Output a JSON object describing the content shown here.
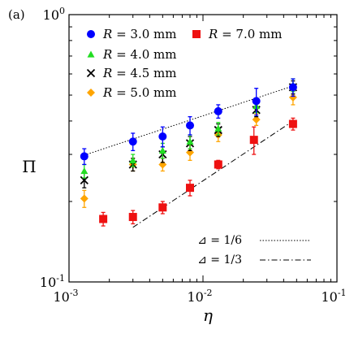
{
  "chart_data": {
    "type": "scatter",
    "panel_label": "(a)",
    "xlabel": "η",
    "ylabel": "Π",
    "xscale": "log",
    "yscale": "log",
    "xlim": [
      0.001,
      0.1
    ],
    "ylim": [
      0.1,
      1
    ],
    "grid": false,
    "legend_position": "top-left",
    "x_ticks": [
      {
        "value": 0.001,
        "base": "10",
        "exp": "-3"
      },
      {
        "value": 0.01,
        "base": "10",
        "exp": "-2"
      },
      {
        "value": 0.1,
        "base": "10",
        "exp": "-1"
      }
    ],
    "y_ticks": [
      {
        "value": 0.1,
        "base": "10",
        "exp": "-1"
      },
      {
        "value": 1,
        "base": "10",
        "exp": "0"
      }
    ],
    "series": [
      {
        "name": "R = 3.0 mm",
        "r_value": "3.0",
        "marker": "circle",
        "color": "#0000ff",
        "x": [
          0.0013,
          0.003,
          0.005,
          0.008,
          0.013,
          0.025,
          0.047
        ],
        "y": [
          0.295,
          0.335,
          0.35,
          0.385,
          0.435,
          0.475,
          0.535
        ],
        "err": [
          0.02,
          0.025,
          0.03,
          0.03,
          0.025,
          0.055,
          0.04
        ]
      },
      {
        "name": "R = 4.0 mm",
        "r_value": "4.0",
        "marker": "triangle",
        "color": "#22dd22",
        "x": [
          0.0013,
          0.003,
          0.005,
          0.008,
          0.013,
          0.025,
          0.047
        ],
        "y": [
          0.26,
          0.285,
          0.31,
          0.335,
          0.375,
          0.455,
          0.545
        ],
        "err": [
          0.015,
          0.015,
          0.02,
          0.02,
          0.02,
          0.025,
          0.03
        ]
      },
      {
        "name": "R = 4.5 mm",
        "r_value": "4.5",
        "marker": "cross",
        "color": "#000000",
        "x": [
          0.0013,
          0.003,
          0.005,
          0.008,
          0.013,
          0.025,
          0.047
        ],
        "y": [
          0.24,
          0.275,
          0.3,
          0.33,
          0.37,
          0.44,
          0.535
        ],
        "err": [
          0.015,
          0.015,
          0.02,
          0.02,
          0.02,
          0.025,
          0.03
        ]
      },
      {
        "name": "R = 5.0 mm",
        "r_value": "5.0",
        "marker": "diamond",
        "color": "#ffa500",
        "x": [
          0.0013,
          0.003,
          0.005,
          0.008,
          0.013,
          0.025,
          0.047
        ],
        "y": [
          0.205,
          0.275,
          0.275,
          0.305,
          0.355,
          0.405,
          0.49
        ],
        "err": [
          0.015,
          0.015,
          0.015,
          0.02,
          0.02,
          0.02,
          0.03
        ]
      },
      {
        "name": "R = 7.0 mm",
        "r_value": "7.0",
        "marker": "square",
        "color": "#ee1111",
        "x": [
          0.0018,
          0.003,
          0.005,
          0.008,
          0.013,
          0.024,
          0.047
        ],
        "y": [
          0.172,
          0.175,
          0.19,
          0.225,
          0.275,
          0.34,
          0.39
        ],
        "err": [
          0.01,
          0.01,
          0.01,
          0.015,
          0.01,
          0.04,
          0.02
        ]
      }
    ],
    "slope_lines": [
      {
        "label": "⊿ = 1/6",
        "style": "dotted",
        "x": [
          0.0013,
          0.047
        ],
        "y": [
          0.298,
          0.541
        ]
      },
      {
        "label": "⊿ = 1/3",
        "style": "dashdot",
        "x": [
          0.003,
          0.047
        ],
        "y": [
          0.16,
          0.4
        ]
      }
    ]
  }
}
